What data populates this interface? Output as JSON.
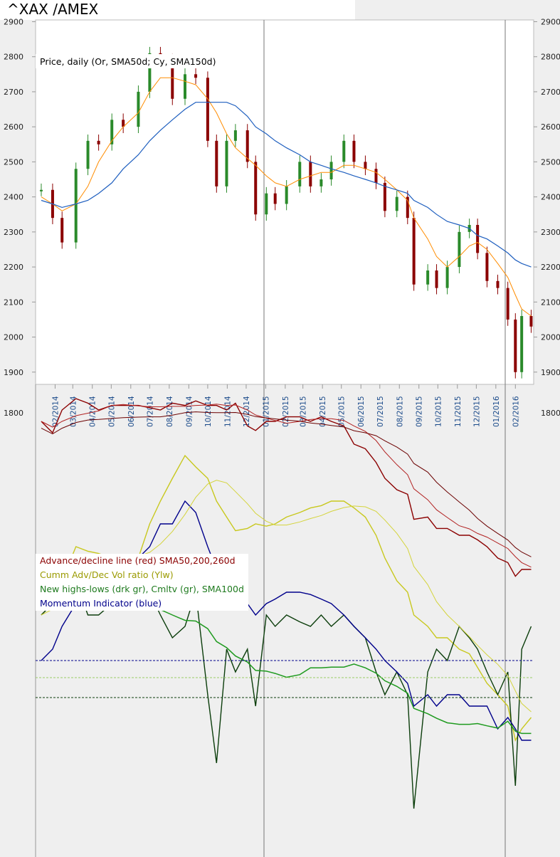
{
  "title": "^XAX /AMEX",
  "legends": {
    "price": "Price, daily (Or, SMA50d; Cy, SMA150d)",
    "breadth": [
      {
        "text": "Advance/decline line (red) SMA50,200,260d",
        "color": "#8b0000"
      },
      {
        "text": "Cumm Adv/Dec Vol ratio (Ylw)",
        "color": "#9a9a00"
      },
      {
        "text": "New highs-lows (drk gr), Cmltv (gr), SMA100d",
        "color": "#1e7a1e"
      },
      {
        "text": "Momentum Indicator (blue)",
        "color": "#00008b"
      }
    ]
  },
  "colors": {
    "background": "#efefef",
    "plot_background": "#ffffff",
    "candle_up": "#2a8a2a",
    "candle_down": "#8b0000",
    "sma50": "#ff8c00",
    "sma150": "#1f5fbf",
    "ad_line": "#8b0000",
    "cumm_vol": "#c8c81e",
    "new_highs_lows": "#0b3d0b",
    "cumulative_nhl": "#1e9a1e",
    "momentum": "#00008b"
  },
  "chart_data": {
    "type": "line",
    "price_panel": {
      "yticks": [
        1800,
        1900,
        2000,
        2100,
        2200,
        2300,
        2400,
        2500,
        2600,
        2700,
        2800,
        2900
      ],
      "ylim": [
        1865,
        2905
      ],
      "date_labels": [
        "02/2014",
        "03/2014",
        "04/2014",
        "05/2014",
        "06/2014",
        "07/2014",
        "08/2014",
        "09/2014",
        "10/2014",
        "11/2014",
        "12/2014",
        "01/2015",
        "02/2015",
        "03/2015",
        "04/2015",
        "05/2015",
        "06/2015",
        "07/2015",
        "08/2015",
        "09/2015",
        "10/2015",
        "11/2015",
        "12/2015",
        "01/2016",
        "02/2016"
      ],
      "x": [
        "2014-01-10",
        "2014-01-28",
        "2014-02-12",
        "2014-03-06",
        "2014-03-25",
        "2014-04-11",
        "2014-05-02",
        "2014-05-20",
        "2014-06-13",
        "2014-07-01",
        "2014-07-18",
        "2014-08-06",
        "2014-08-26",
        "2014-09-12",
        "2014-10-01",
        "2014-10-15",
        "2014-10-31",
        "2014-11-14",
        "2014-12-03",
        "2014-12-16",
        "2015-01-02",
        "2015-01-16",
        "2015-02-03",
        "2015-02-24",
        "2015-03-13",
        "2015-03-30",
        "2015-04-15",
        "2015-05-05",
        "2015-05-21",
        "2015-06-08",
        "2015-06-25",
        "2015-07-09",
        "2015-07-28",
        "2015-08-14",
        "2015-08-24",
        "2015-09-15",
        "2015-09-29",
        "2015-10-16",
        "2015-11-04",
        "2015-11-20",
        "2015-12-03",
        "2015-12-18",
        "2016-01-04",
        "2016-01-20",
        "2016-02-01",
        "2016-02-11",
        "2016-02-26"
      ],
      "series": [
        {
          "name": "Price",
          "values": [
            2420,
            2340,
            2270,
            2480,
            2560,
            2550,
            2620,
            2600,
            2700,
            2810,
            2790,
            2680,
            2750,
            2740,
            2560,
            2430,
            2560,
            2590,
            2500,
            2350,
            2410,
            2380,
            2430,
            2500,
            2430,
            2450,
            2500,
            2560,
            2500,
            2480,
            2440,
            2360,
            2400,
            2340,
            2150,
            2190,
            2140,
            2200,
            2300,
            2320,
            2240,
            2160,
            2140,
            2050,
            1900,
            2060,
            2030
          ]
        },
        {
          "name": "SMA50d",
          "values": [
            2400,
            2380,
            2360,
            2380,
            2430,
            2500,
            2560,
            2600,
            2640,
            2700,
            2740,
            2740,
            2730,
            2720,
            2680,
            2640,
            2580,
            2540,
            2510,
            2490,
            2460,
            2440,
            2430,
            2450,
            2460,
            2470,
            2470,
            2490,
            2490,
            2480,
            2470,
            2450,
            2420,
            2390,
            2340,
            2280,
            2230,
            2200,
            2230,
            2260,
            2270,
            2250,
            2210,
            2170,
            2120,
            2080,
            2060
          ]
        },
        {
          "name": "SMA150d",
          "values": [
            2390,
            2380,
            2370,
            2380,
            2390,
            2410,
            2440,
            2480,
            2520,
            2560,
            2590,
            2620,
            2650,
            2670,
            2670,
            2670,
            2670,
            2660,
            2630,
            2600,
            2580,
            2560,
            2540,
            2520,
            2500,
            2490,
            2480,
            2470,
            2460,
            2450,
            2440,
            2430,
            2420,
            2410,
            2390,
            2370,
            2350,
            2330,
            2320,
            2310,
            2290,
            2280,
            2260,
            2240,
            2220,
            2210,
            2200
          ]
        }
      ]
    },
    "breadth_panel": {
      "series": [
        {
          "name": "Advance/decline line",
          "values": [
            0.9,
            0.85,
            0.95,
            1.0,
            0.98,
            0.95,
            0.97,
            0.97,
            0.97,
            0.96,
            0.95,
            0.98,
            0.97,
            0.99,
            0.97,
            0.97,
            0.95,
            0.98,
            0.88,
            0.86,
            0.9,
            0.9,
            0.92,
            0.92,
            0.9,
            0.92,
            0.9,
            0.88,
            0.8,
            0.78,
            0.72,
            0.65,
            0.6,
            0.58,
            0.47,
            0.48,
            0.43,
            0.43,
            0.4,
            0.4,
            0.38,
            0.35,
            0.3,
            0.28,
            0.22,
            0.25,
            0.25
          ]
        },
        {
          "name": "Cumm Adv/Dec Vol ratio",
          "values": [
            0.05,
            0.1,
            0.2,
            0.35,
            0.33,
            0.32,
            0.3,
            0.25,
            0.3,
            0.45,
            0.55,
            0.65,
            0.75,
            0.7,
            0.65,
            0.55,
            0.48,
            0.42,
            0.43,
            0.45,
            0.44,
            0.45,
            0.48,
            0.5,
            0.52,
            0.53,
            0.55,
            0.55,
            0.52,
            0.48,
            0.4,
            0.3,
            0.2,
            0.15,
            0.05,
            0.0,
            -0.05,
            -0.05,
            -0.1,
            -0.12,
            -0.18,
            -0.25,
            -0.3,
            -0.35,
            -0.5,
            -0.45,
            -0.4
          ]
        },
        {
          "name": "New highs-lows",
          "values": [
            0.05,
            0.1,
            0.15,
            0.2,
            0.05,
            0.05,
            0.1,
            0.15,
            0.2,
            0.15,
            0.05,
            -0.05,
            0.0,
            0.15,
            -0.3,
            -0.6,
            -0.1,
            -0.2,
            -0.1,
            -0.35,
            0.05,
            0.0,
            0.05,
            0.02,
            0.0,
            0.05,
            0.0,
            0.05,
            0.0,
            -0.05,
            -0.2,
            -0.3,
            -0.2,
            -0.3,
            -0.8,
            -0.2,
            -0.1,
            -0.15,
            0.0,
            -0.05,
            -0.1,
            -0.2,
            -0.3,
            -0.2,
            -0.7,
            -0.1,
            0.0
          ]
        },
        {
          "name": "Momentum Indicator",
          "values": [
            -0.15,
            -0.1,
            0.0,
            0.1,
            0.2,
            0.22,
            0.25,
            0.28,
            0.3,
            0.35,
            0.45,
            0.45,
            0.55,
            0.5,
            0.35,
            0.25,
            0.2,
            0.15,
            0.1,
            0.05,
            0.1,
            0.12,
            0.15,
            0.15,
            0.14,
            0.12,
            0.1,
            0.05,
            0.0,
            -0.05,
            -0.1,
            -0.15,
            -0.2,
            -0.25,
            -0.35,
            -0.3,
            -0.35,
            -0.3,
            -0.3,
            -0.35,
            -0.35,
            -0.35,
            -0.45,
            -0.4,
            -0.45,
            -0.5,
            -0.5
          ]
        }
      ]
    }
  }
}
